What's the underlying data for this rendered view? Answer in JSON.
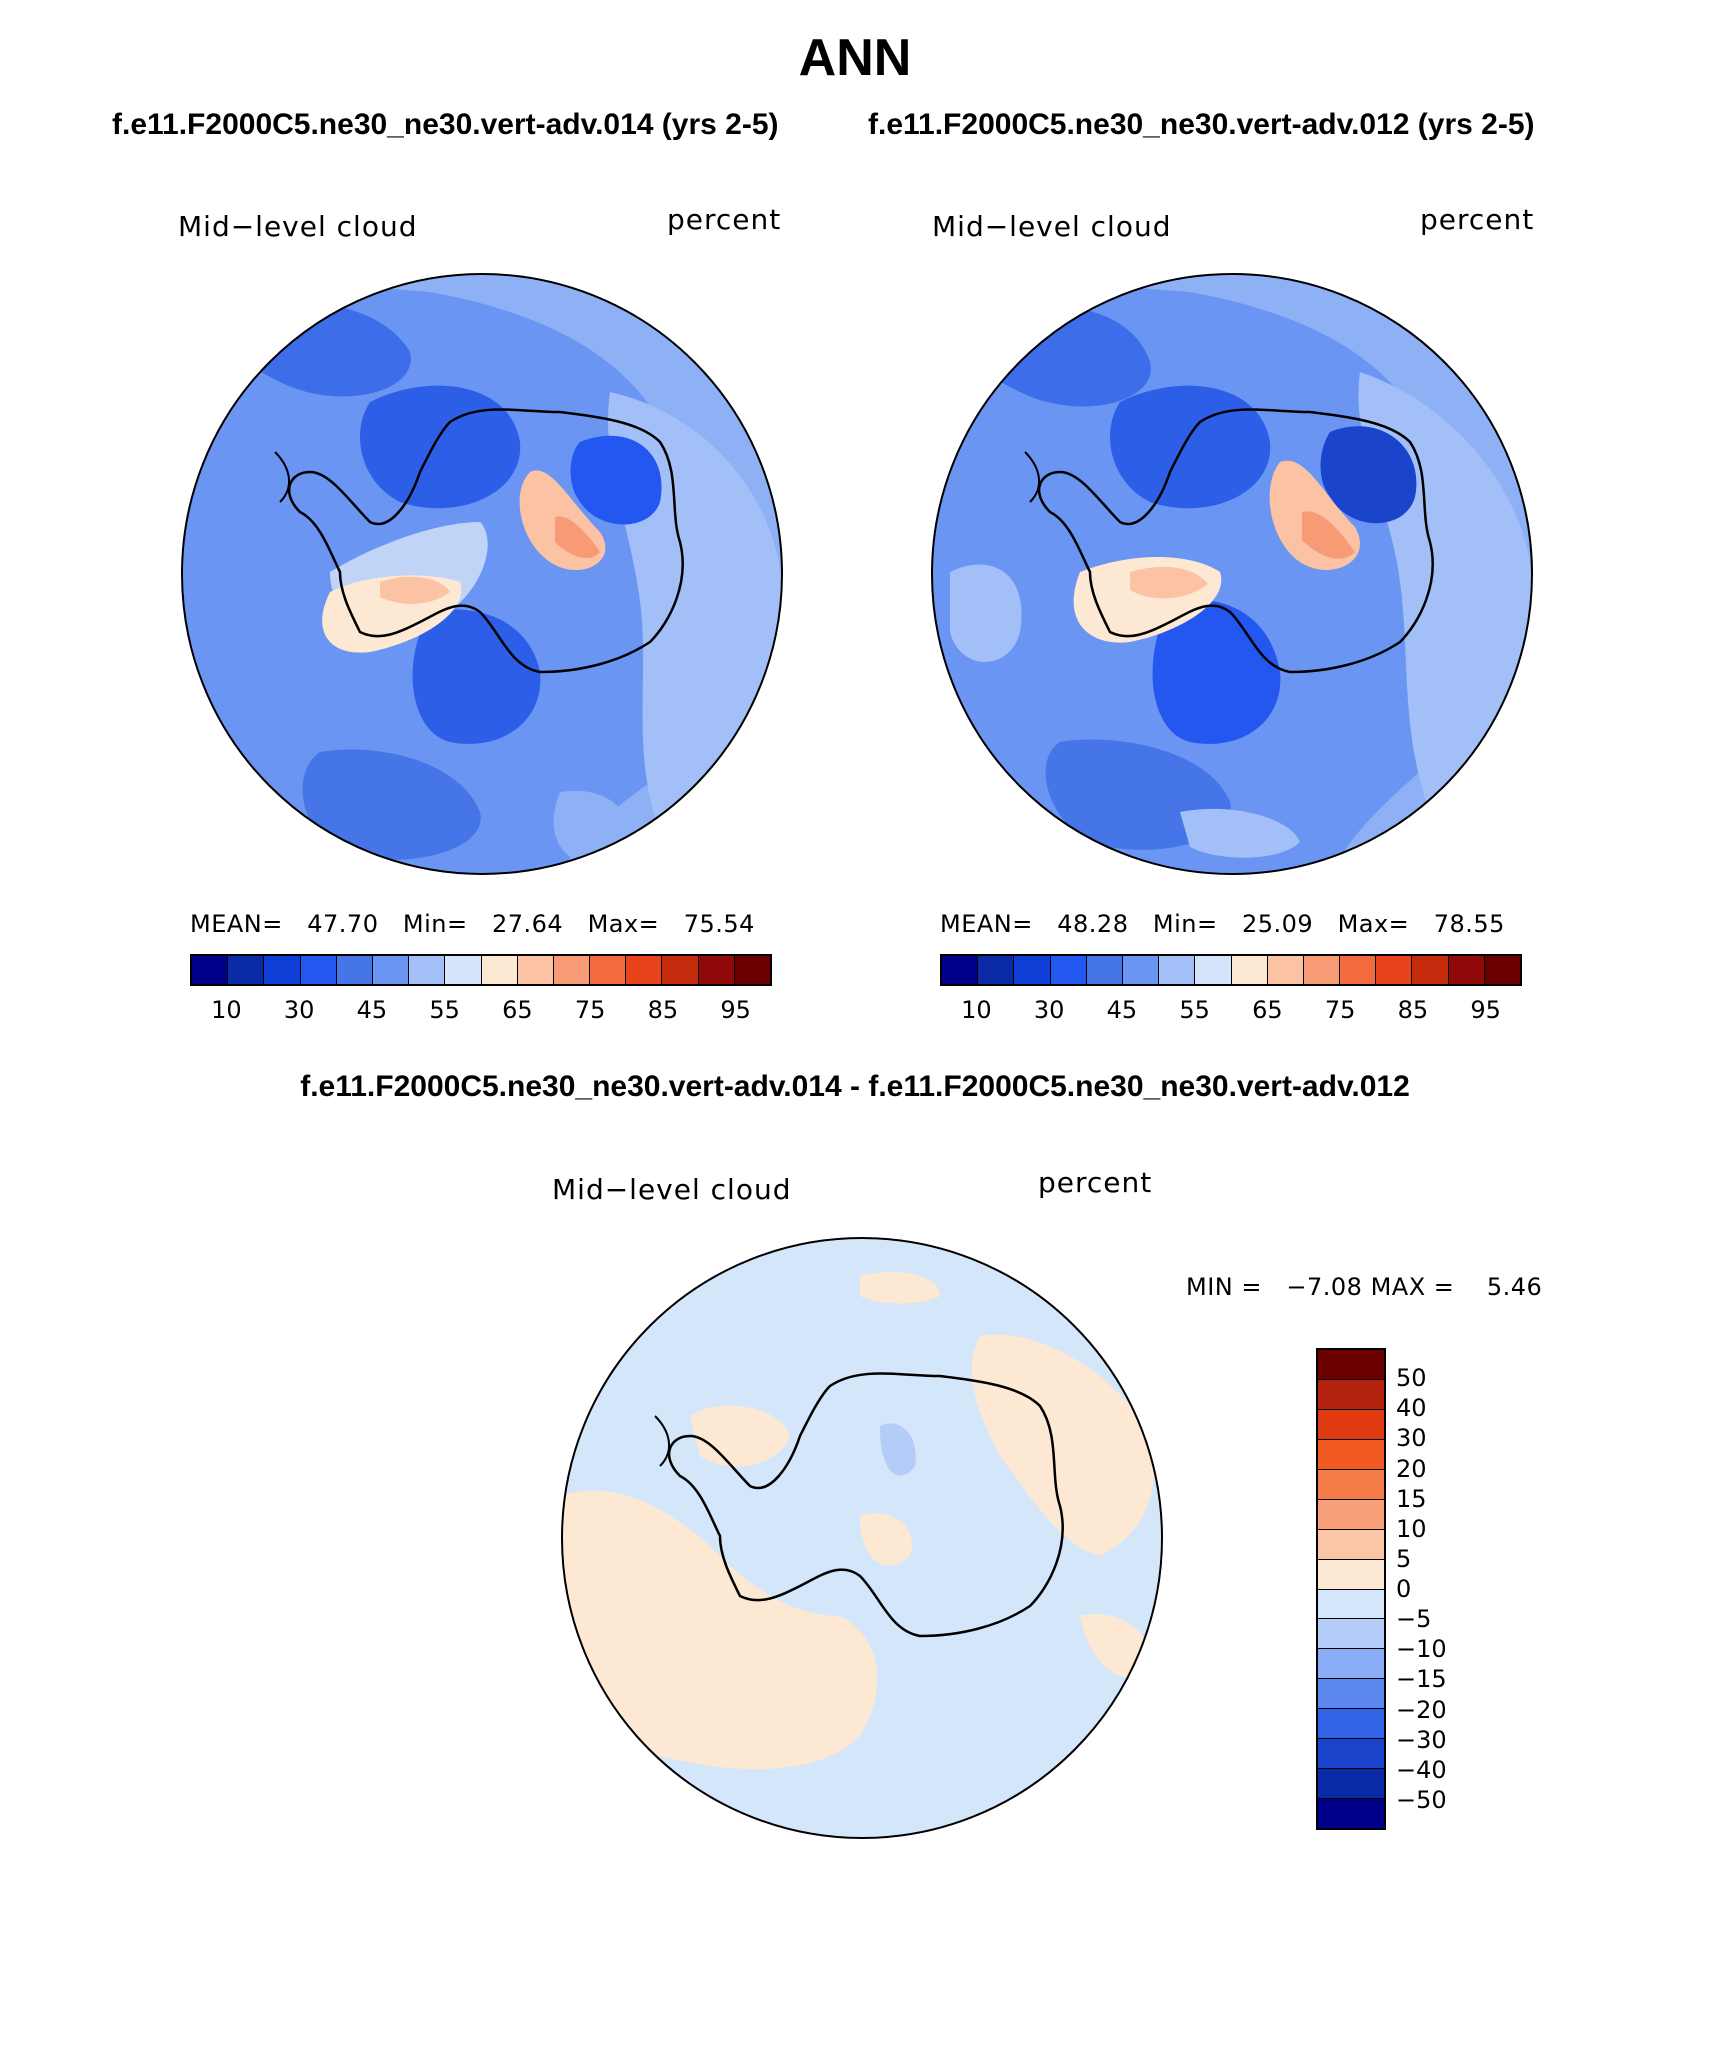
{
  "page": {
    "title": "ANN",
    "case1_title": "f.e11.F2000C5.ne30_ne30.vert-adv.014 (yrs 2-5)",
    "case2_title": "f.e11.F2000C5.ne30_ne30.vert-adv.012 (yrs 2-5)",
    "diff_title": "f.e11.F2000C5.ne30_ne30.vert-adv.014 - f.e11.F2000C5.ne30_ne30.vert-adv.012"
  },
  "panels": {
    "case1": {
      "variable": "Mid−level cloud",
      "units": "percent",
      "mean_label": "MEAN=",
      "mean": "47.70",
      "min_label": "Min=",
      "min": "27.64",
      "max_label": "Max=",
      "max": "75.54"
    },
    "case2": {
      "variable": "Mid−level cloud",
      "units": "percent",
      "mean_label": "MEAN=",
      "mean": "48.28",
      "min_label": "Min=",
      "min": "25.09",
      "max_label": "Max=",
      "max": "78.55"
    },
    "diff": {
      "variable": "Mid−level cloud",
      "units": "percent",
      "min_label": "MIN =",
      "min": "−7.08",
      "max_label": "MAX =",
      "max": "5.46"
    }
  },
  "colorbar_main": {
    "colors": [
      "#00008b",
      "#0a2aa6",
      "#0f3fd6",
      "#2456f0",
      "#4575e6",
      "#6b95f2",
      "#a3bff7",
      "#d4e4fa",
      "#fde8d4",
      "#fbc3a4",
      "#f79b76",
      "#f26b3f",
      "#e8431a",
      "#c42a0c",
      "#900a0a",
      "#6b0000"
    ],
    "tick_labels": [
      "10",
      "30",
      "45",
      "55",
      "65",
      "75",
      "85",
      "95"
    ]
  },
  "colorbar_diff": {
    "colors": [
      "#6b0000",
      "#b2220e",
      "#e03a12",
      "#f25a24",
      "#f57b47",
      "#f9a07a",
      "#fbc6a6",
      "#fde8d4",
      "#d4e6fa",
      "#b3ccf8",
      "#88acf5",
      "#5a88ee",
      "#3264e8",
      "#1a44cc",
      "#0a2aa6",
      "#00008b"
    ],
    "tick_labels": [
      "50",
      "40",
      "30",
      "20",
      "15",
      "10",
      "5",
      "0",
      "−5",
      "−10",
      "−15",
      "−20",
      "−30",
      "−40",
      "−50"
    ]
  },
  "chart_data": [
    {
      "type": "heatmap",
      "projection": "south-polar stereographic",
      "title": "Mid−level cloud",
      "units": "percent",
      "case": "f.e11.F2000C5.ne30_ne30.vert-adv.014 (yrs 2-5)",
      "mean": 47.7,
      "min": 27.64,
      "max": 75.54,
      "contour_levels": [
        10,
        20,
        30,
        40,
        45,
        50,
        55,
        60,
        65,
        70,
        75,
        80,
        85,
        90,
        95
      ]
    },
    {
      "type": "heatmap",
      "projection": "south-polar stereographic",
      "title": "Mid−level cloud",
      "units": "percent",
      "case": "f.e11.F2000C5.ne30_ne30.vert-adv.012 (yrs 2-5)",
      "mean": 48.28,
      "min": 25.09,
      "max": 78.55,
      "contour_levels": [
        10,
        20,
        30,
        40,
        45,
        50,
        55,
        60,
        65,
        70,
        75,
        80,
        85,
        90,
        95
      ]
    },
    {
      "type": "heatmap",
      "projection": "south-polar stereographic",
      "title": "Mid−level cloud (difference)",
      "units": "percent",
      "min": -7.08,
      "max": 5.46,
      "contour_levels": [
        -50,
        -40,
        -30,
        -20,
        -15,
        -10,
        -5,
        0,
        5,
        10,
        15,
        20,
        30,
        40,
        50
      ]
    }
  ]
}
